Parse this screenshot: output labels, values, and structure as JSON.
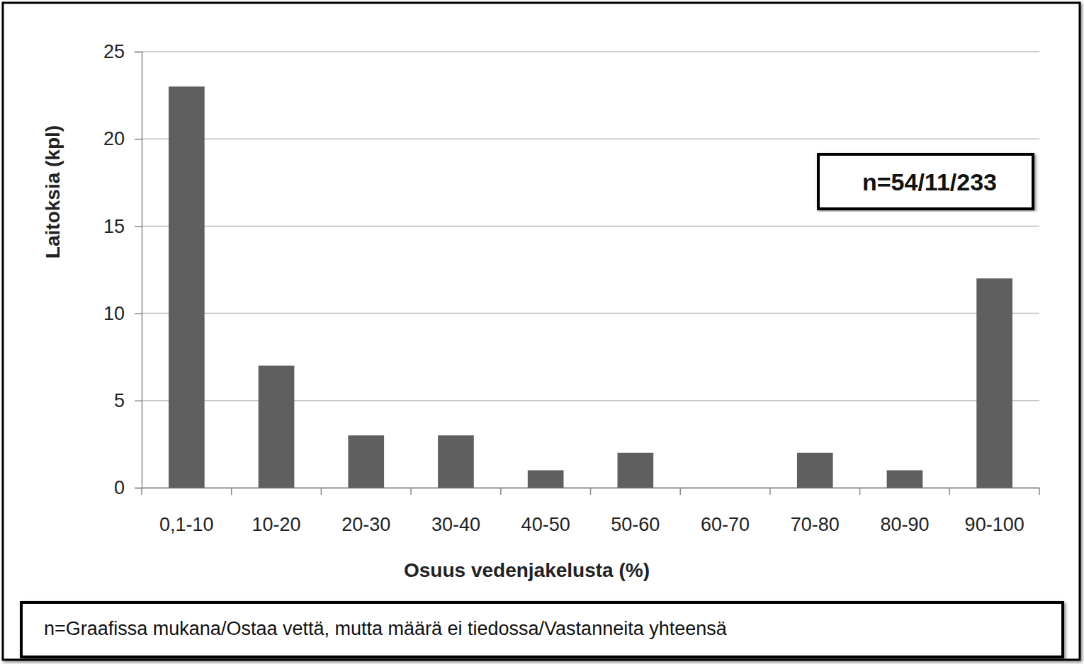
{
  "chart_data": {
    "type": "bar",
    "categories": [
      "0,1-10",
      "10-20",
      "20-30",
      "30-40",
      "40-50",
      "50-60",
      "60-70",
      "70-80",
      "80-90",
      "90-100"
    ],
    "values": [
      23,
      7,
      3,
      3,
      1,
      2,
      0,
      2,
      1,
      12
    ],
    "color": "#5f5f5f",
    "ylim": [
      0,
      25
    ],
    "yticks": [
      0,
      5,
      10,
      15,
      20,
      25
    ],
    "grid": true,
    "y_label": "Laitoksia (kpl)",
    "x_label": "Osuus vedenjakelusta (%)",
    "annotations": [
      "n=54/11/233",
      "n=Graafissa mukana/Ostaa vettä, mutta määrä ei tiedossa/Vastanneita yhteensä"
    ]
  }
}
